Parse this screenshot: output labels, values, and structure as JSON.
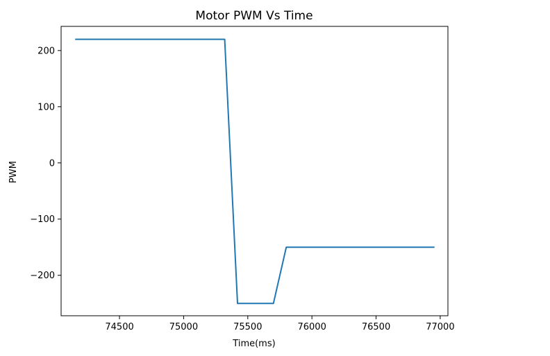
{
  "chart_data": {
    "type": "line",
    "title": "Motor PWM Vs Time",
    "xlabel": "Time(ms)",
    "ylabel": "PWM",
    "xlim": [
      74045,
      77060
    ],
    "ylim": [
      -272,
      243
    ],
    "x_ticks": [
      74500,
      75000,
      75500,
      76000,
      76500,
      77000
    ],
    "x_tick_labels": [
      "74500",
      "75000",
      "75500",
      "76000",
      "76500",
      "77000"
    ],
    "y_ticks": [
      200,
      100,
      0,
      -100,
      -200
    ],
    "y_tick_labels": [
      "200",
      "100",
      "0",
      "−100",
      "−200"
    ],
    "grid": false,
    "series": [
      {
        "color": "#1f77b4",
        "x": [
          74160,
          75320,
          75420,
          75700,
          75800,
          76950
        ],
        "y": [
          220,
          220,
          -250,
          -250,
          -150,
          -150
        ]
      }
    ]
  }
}
